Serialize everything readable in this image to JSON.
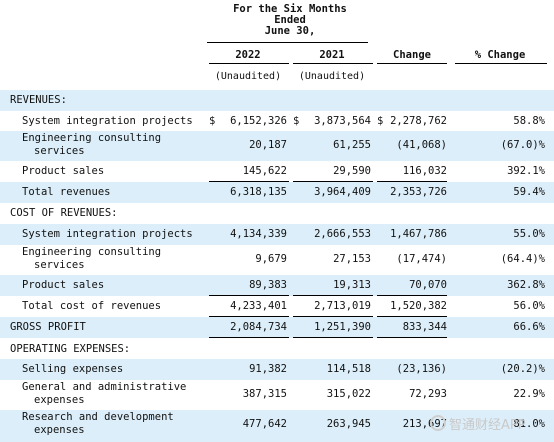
{
  "header": {
    "period_line1": "For the Six Months",
    "period_line2": "Ended",
    "period_line3": "June 30,",
    "col_2022": "2022",
    "col_2021": "2021",
    "col_change": "Change",
    "col_pct": "% Change",
    "unaudited_2022": "(Unaudited)",
    "unaudited_2021": "(Unaudited)"
  },
  "rows": [
    {
      "label": "REVENUES:"
    },
    {
      "label": "System integration projects",
      "cur1": "$",
      "v2022": "6,152,326",
      "cur2": "$",
      "v2021": "3,873,564",
      "cur3": "$",
      "change": "2,278,762",
      "pct": "58.8%"
    },
    {
      "label": "Engineering consulting",
      "label2": "services",
      "v2022": "20,187",
      "v2021": "61,255",
      "change": "(41,068)",
      "pct": "(67.0)%"
    },
    {
      "label": "Product sales",
      "v2022": "145,622",
      "v2021": "29,590",
      "change": "116,032",
      "pct": "392.1%"
    },
    {
      "label": "Total revenues",
      "v2022": "6,318,135",
      "v2021": "3,964,409",
      "change": "2,353,726",
      "pct": "59.4%"
    },
    {
      "label": "COST OF REVENUES:"
    },
    {
      "label": "System integration projects",
      "v2022": "4,134,339",
      "v2021": "2,666,553",
      "change": "1,467,786",
      "pct": "55.0%"
    },
    {
      "label": "Engineering consulting",
      "label2": "services",
      "v2022": "9,679",
      "v2021": "27,153",
      "change": "(17,474)",
      "pct": "(64.4)%"
    },
    {
      "label": "Product sales",
      "v2022": "89,383",
      "v2021": "19,313",
      "change": "70,070",
      "pct": "362.8%"
    },
    {
      "label": "Total cost of revenues",
      "v2022": "4,233,401",
      "v2021": "2,713,019",
      "change": "1,520,382",
      "pct": "56.0%"
    },
    {
      "label": "GROSS PROFIT",
      "v2022": "2,084,734",
      "v2021": "1,251,390",
      "change": "833,344",
      "pct": "66.6%"
    },
    {
      "label": "OPERATING EXPENSES:"
    },
    {
      "label": "Selling expenses",
      "v2022": "91,382",
      "v2021": "114,518",
      "change": "(23,136)",
      "pct": "(20.2)%"
    },
    {
      "label": "General and administrative",
      "label2": "expenses",
      "v2022": "387,315",
      "v2021": "315,022",
      "change": "72,293",
      "pct": "22.9%"
    },
    {
      "label": "Research and development",
      "label2": "expenses",
      "v2022": "477,642",
      "v2021": "263,945",
      "change": "213,697",
      "pct": "81.0%"
    }
  ],
  "watermark": {
    "text": "智通财经APP"
  }
}
